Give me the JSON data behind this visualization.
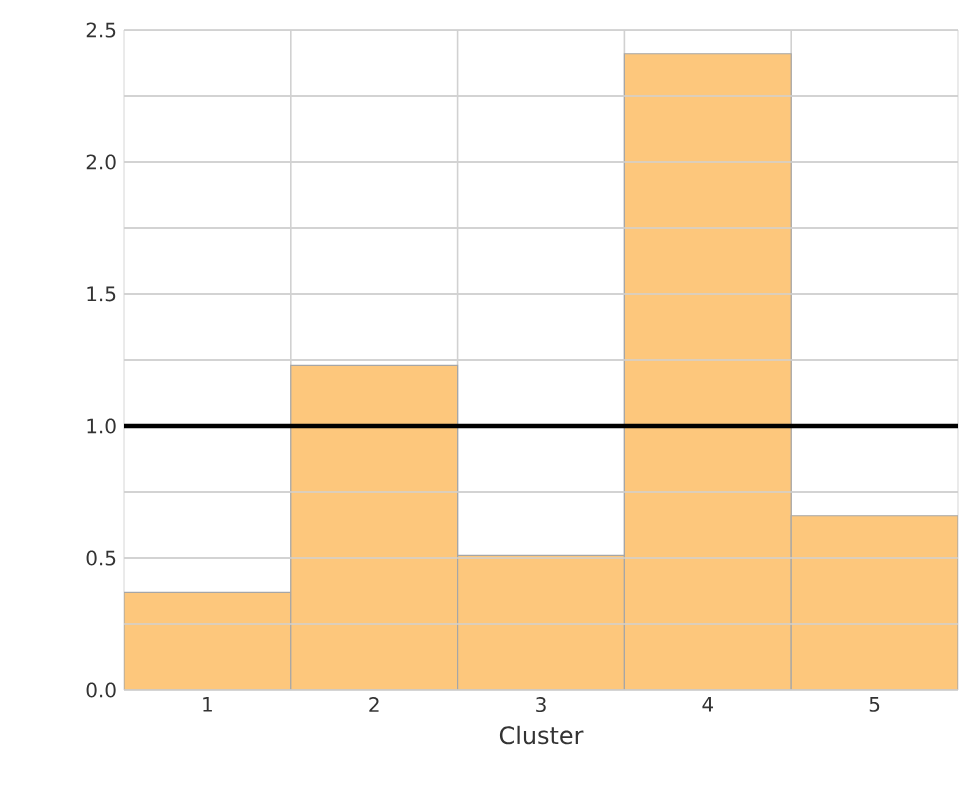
{
  "chart_data": {
    "type": "bar",
    "xlabel": "Cluster",
    "categories": [
      "1",
      "2",
      "3",
      "4",
      "5"
    ],
    "values": [
      0.37,
      1.23,
      0.51,
      2.41,
      0.66
    ],
    "color": "#fdc77c",
    "ylim": [
      0,
      2.5
    ],
    "yticks": [
      {
        "value": 0,
        "label": "0.0"
      },
      {
        "value": 0.25,
        "label": null
      },
      0.5,
      {
        "value": 0.75,
        "label": null
      },
      {
        "value": 1,
        "label": "1.0"
      },
      {
        "value": 1.25,
        "label": null
      },
      1.5,
      {
        "value": 1.75,
        "label": null
      },
      {
        "value": 2,
        "label": "2.0"
      },
      {
        "value": 2.25,
        "label": null
      },
      2.5
    ],
    "grid": true,
    "ref_lines": [
      {
        "axis": "y",
        "value": 1.0,
        "color": "#000000",
        "line_style": "solid"
      }
    ]
  }
}
